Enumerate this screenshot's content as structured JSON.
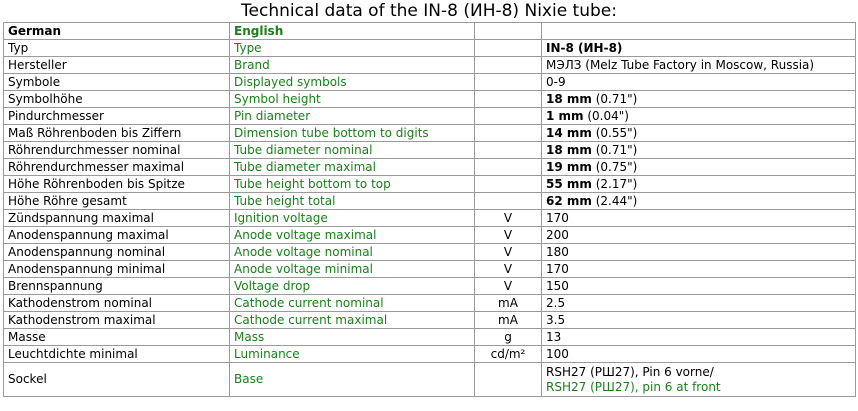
{
  "title": "Technical data of the IN-8 (ИН-8) Nixie tube:",
  "header": {
    "german": "German",
    "english": "English",
    "unit": "",
    "value": ""
  },
  "rows": [
    {
      "de": "Typ",
      "en": "Type",
      "unit": "",
      "value_bold": "IN-8 (ИН-8)",
      "value_rest": ""
    },
    {
      "de": "Hersteller",
      "en": "Brand",
      "unit": "",
      "value_bold": "",
      "value_rest": "МЭЛЗ (Melz Tube Factory in Moscow, Russia)"
    },
    {
      "de": "Symbole",
      "en": "Displayed symbols",
      "unit": "",
      "value_bold": "",
      "value_rest": "0-9"
    },
    {
      "de": "Symbolhöhe",
      "en": "Symbol height",
      "unit": "",
      "value_bold": "18 mm",
      "value_rest": " (0.71\")"
    },
    {
      "de": "Pindurchmesser",
      "en": "Pin diameter",
      "unit": "",
      "value_bold": "1 mm",
      "value_rest": " (0.04\")"
    },
    {
      "de": "Maß Röhrenboden bis Ziffern",
      "en": "Dimension tube bottom to digits",
      "unit": "",
      "value_bold": "14 mm",
      "value_rest": " (0.55\")"
    },
    {
      "de": "Röhrendurchmesser nominal",
      "en": "Tube diameter nominal",
      "unit": "",
      "value_bold": "18 mm",
      "value_rest": " (0.71\")"
    },
    {
      "de": "Röhrendurchmesser maximal",
      "en": "Tube diameter maximal",
      "unit": "",
      "value_bold": "19 mm",
      "value_rest": " (0.75\")"
    },
    {
      "de": "Höhe Röhrenboden bis Spitze",
      "en": "Tube height bottom to top",
      "unit": "",
      "value_bold": "55 mm",
      "value_rest": " (2.17\")"
    },
    {
      "de": "Höhe Röhre gesamt",
      "en": "Tube height total",
      "unit": "",
      "value_bold": "62 mm",
      "value_rest": " (2.44\")"
    },
    {
      "de": "Zündspannung maximal",
      "en": "Ignition voltage",
      "unit": "V",
      "value_bold": "",
      "value_rest": "170"
    },
    {
      "de": "Anodenspannung maximal",
      "en": "Anode voltage maximal",
      "unit": "V",
      "value_bold": "",
      "value_rest": "200"
    },
    {
      "de": "Anodenspannung nominal",
      "en": "Anode voltage nominal",
      "unit": "V",
      "value_bold": "",
      "value_rest": "180"
    },
    {
      "de": "Anodenspannung minimal",
      "en": "Anode voltage minimal",
      "unit": "V",
      "value_bold": "",
      "value_rest": "170"
    },
    {
      "de": "Brennspannung",
      "en": "Voltage drop",
      "unit": "V",
      "value_bold": "",
      "value_rest": "150"
    },
    {
      "de": "Kathodenstrom nominal",
      "en": "Cathode current nominal",
      "unit": "mA",
      "value_bold": "",
      "value_rest": "2.5"
    },
    {
      "de": "Kathodenstrom maximal",
      "en": "Cathode current maximal",
      "unit": "mA",
      "value_bold": "",
      "value_rest": "3.5"
    },
    {
      "de": "Masse",
      "en": "Mass",
      "unit": "g",
      "value_bold": "",
      "value_rest": "13"
    },
    {
      "de": "Leuchtdichte minimal",
      "en": "Luminance",
      "unit": "cd/m²",
      "value_bold": "",
      "value_rest": "100"
    }
  ],
  "base_row": {
    "de": "Sockel",
    "en": "Base",
    "unit": "",
    "value_line1": "RSH27 (РШ27), Pin 6 vorne/",
    "value_line2": "RSH27 (РШ27), pin 6 at front"
  },
  "colors": {
    "english_text": "#1a7f1a",
    "border": "#9a9a9a"
  }
}
